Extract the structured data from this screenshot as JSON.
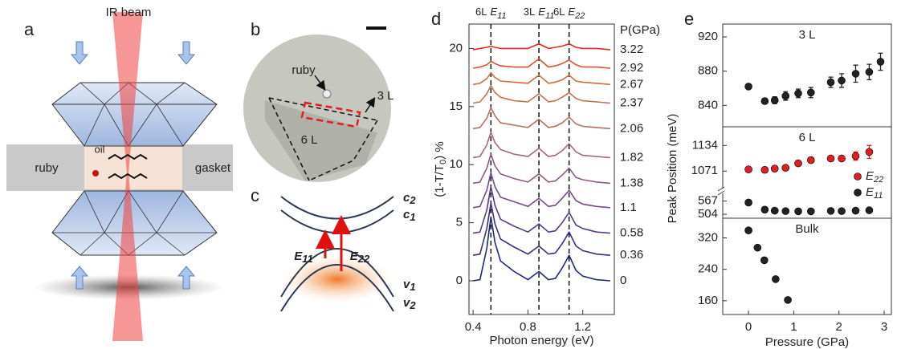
{
  "panels": {
    "a": {
      "label": "a",
      "beam": "IR beam",
      "oil": "oil",
      "ruby": "ruby",
      "gasket": "gasket"
    },
    "b": {
      "label": "b",
      "ruby": "ruby",
      "layer_3": "3 L",
      "layer_6": "6 L"
    },
    "c": {
      "label": "c",
      "bands": [
        {
          "symbol": "c",
          "sub": "2"
        },
        {
          "symbol": "c",
          "sub": "1"
        },
        {
          "symbol": "v",
          "sub": "1"
        },
        {
          "symbol": "v",
          "sub": "2"
        }
      ],
      "transitions": [
        {
          "symbol": "E",
          "sub": "11"
        },
        {
          "symbol": "E",
          "sub": "22"
        }
      ]
    }
  },
  "chart_data": [
    {
      "type": "line",
      "panel_label": "d",
      "xlabel": "Photon energy (eV)",
      "ylabel": {
        "main": "(1-T/T",
        "sub": "0",
        "tail": ") %"
      },
      "legend_title": "P(GPa)",
      "x": [
        0.4,
        0.45,
        0.5,
        0.53,
        0.56,
        0.6,
        0.7,
        0.8,
        0.88,
        0.95,
        1.0,
        1.05,
        1.1,
        1.15,
        1.2,
        1.3,
        1.4
      ],
      "xlim": [
        0.37,
        1.43
      ],
      "xticks": [
        0.4,
        0.8,
        1.2
      ],
      "ylim": [
        -2.9,
        22.1
      ],
      "yticks": [
        0,
        5,
        10,
        15,
        20
      ],
      "markers": [
        {
          "x": 0.53,
          "layer": "6L",
          "symbol": "E",
          "sub": "11"
        },
        {
          "x": 0.88,
          "layer": "3L",
          "symbol": "E",
          "sub": "11"
        },
        {
          "x": 1.1,
          "layer": "6L",
          "symbol": "E",
          "sub": "22"
        }
      ],
      "series": [
        {
          "name": "0",
          "color": "#1f2a7a",
          "values": [
            0,
            0.1,
            2.8,
            5.5,
            3.3,
            1.7,
            0.8,
            0.1,
            0.8,
            0.1,
            0.2,
            1.1,
            2.2,
            0.9,
            0.4,
            0.1,
            0
          ]
        },
        {
          "name": "0.36",
          "color": "#3b2d80",
          "values": [
            2.2,
            2.3,
            4.5,
            6.7,
            4.9,
            3.6,
            2.9,
            2.3,
            3.0,
            2.3,
            2.4,
            3.2,
            4.2,
            3.0,
            2.6,
            2.3,
            2.2
          ]
        },
        {
          "name": "0.58",
          "color": "#583a84",
          "values": [
            4.1,
            4.2,
            6.1,
            8.1,
            6.5,
            5.3,
            4.7,
            4.2,
            4.9,
            4.2,
            4.3,
            5.0,
            5.9,
            4.8,
            4.5,
            4.2,
            4.1
          ]
        },
        {
          "name": "1.1",
          "color": "#764a88",
          "values": [
            6.3,
            6.4,
            7.8,
            9.3,
            8.1,
            7.2,
            6.8,
            6.4,
            7.1,
            6.4,
            6.5,
            7.1,
            7.8,
            6.9,
            6.6,
            6.4,
            6.3
          ]
        },
        {
          "name": "1.38",
          "color": "#8c5a82",
          "values": [
            8.4,
            8.5,
            9.7,
            10.9,
            9.9,
            9.2,
            8.8,
            8.5,
            9.2,
            8.5,
            8.6,
            9.1,
            9.7,
            8.9,
            8.7,
            8.5,
            8.4
          ]
        },
        {
          "name": "1.82",
          "color": "#a4687a",
          "values": [
            10.6,
            10.7,
            11.7,
            12.8,
            11.9,
            11.3,
            10.9,
            10.7,
            11.4,
            10.7,
            10.8,
            11.2,
            11.8,
            11.1,
            10.8,
            10.7,
            10.6
          ]
        },
        {
          "name": "2.06",
          "color": "#b86e62",
          "values": [
            13.1,
            13.2,
            14.0,
            14.9,
            14.2,
            13.6,
            13.4,
            13.2,
            13.9,
            13.2,
            13.3,
            13.6,
            14.1,
            13.5,
            13.3,
            13.2,
            13.1
          ]
        },
        {
          "name": "2.37",
          "color": "#c8704c",
          "values": [
            15.3,
            15.4,
            16.1,
            16.8,
            16.2,
            15.8,
            15.5,
            15.4,
            16.1,
            15.4,
            15.5,
            15.8,
            16.2,
            15.7,
            15.5,
            15.4,
            15.3
          ]
        },
        {
          "name": "2.67",
          "color": "#d86a3a",
          "values": [
            16.9,
            17.0,
            17.4,
            17.9,
            17.5,
            17.2,
            17.1,
            17.0,
            17.7,
            17.0,
            17.1,
            17.3,
            17.7,
            17.2,
            17.1,
            17.0,
            16.9
          ]
        },
        {
          "name": "2.92",
          "color": "#e0502a",
          "values": [
            18.3,
            18.4,
            18.6,
            18.9,
            18.7,
            18.5,
            18.4,
            18.4,
            19.1,
            18.4,
            18.5,
            18.7,
            19.0,
            18.6,
            18.4,
            18.4,
            18.3
          ]
        },
        {
          "name": "3.22",
          "color": "#e8261c",
          "values": [
            19.9,
            20.0,
            20.1,
            20.2,
            20.1,
            20.0,
            20.0,
            20.0,
            20.4,
            20.0,
            20.1,
            20.2,
            20.4,
            20.1,
            20.0,
            20.0,
            19.9
          ]
        }
      ]
    },
    {
      "type": "scatter",
      "panel_label": "e",
      "label": "3 L",
      "ylabel": "Peak Position (meV)",
      "x": [
        0,
        0.36,
        0.58,
        0.82,
        1.1,
        1.38,
        1.82,
        2.06,
        2.37,
        2.67,
        2.92
      ],
      "values": [
        862,
        845,
        846,
        851,
        854,
        855,
        867,
        869,
        877,
        879,
        891
      ],
      "errors": [
        2,
        3,
        4,
        5,
        5,
        6,
        6,
        8,
        10,
        9,
        10
      ],
      "color": "#222222",
      "xlim": [
        -0.57,
        3.16
      ],
      "ylim": [
        815,
        935
      ],
      "yticks": [
        840,
        880,
        920
      ]
    },
    {
      "type": "scatter",
      "label": "6 L",
      "x": [
        0,
        0.36,
        0.58,
        0.82,
        1.1,
        1.38,
        1.82,
        2.06,
        2.37,
        2.67
      ],
      "xlim": [
        -0.57,
        3.16
      ],
      "ylim": [
        1030,
        1180
      ],
      "yticks": [
        1071,
        1134
      ],
      "y2lim": [
        485,
        600
      ],
      "y2ticks": [
        504,
        567
      ],
      "series": [
        {
          "name": "E",
          "name_sub": "22",
          "color": "#e02020",
          "values": [
            1075,
            1074,
            1077,
            1079,
            1090,
            1098,
            1102,
            1102,
            1108,
            1118
          ],
          "errors": [
            4,
            4,
            4,
            4,
            5,
            5,
            6,
            6,
            10,
            16
          ]
        },
        {
          "name": "E",
          "name_sub": "11",
          "color": "#222222",
          "axis": "y2",
          "values": [
            560,
            526,
            521,
            519,
            518,
            518,
            520,
            519,
            521,
            523
          ]
        }
      ]
    },
    {
      "type": "scatter",
      "label": "Bulk",
      "xlabel": "Pressure (GPa)",
      "x": [
        0,
        0.2,
        0.35,
        0.6,
        0.87
      ],
      "values": [
        339,
        295,
        263,
        215,
        162
      ],
      "color": "#222222",
      "xlim": [
        -0.57,
        3.16
      ],
      "xticks": [
        0,
        1,
        2,
        3
      ],
      "ylim": [
        125,
        370
      ],
      "yticks": [
        160,
        240,
        320
      ]
    }
  ]
}
